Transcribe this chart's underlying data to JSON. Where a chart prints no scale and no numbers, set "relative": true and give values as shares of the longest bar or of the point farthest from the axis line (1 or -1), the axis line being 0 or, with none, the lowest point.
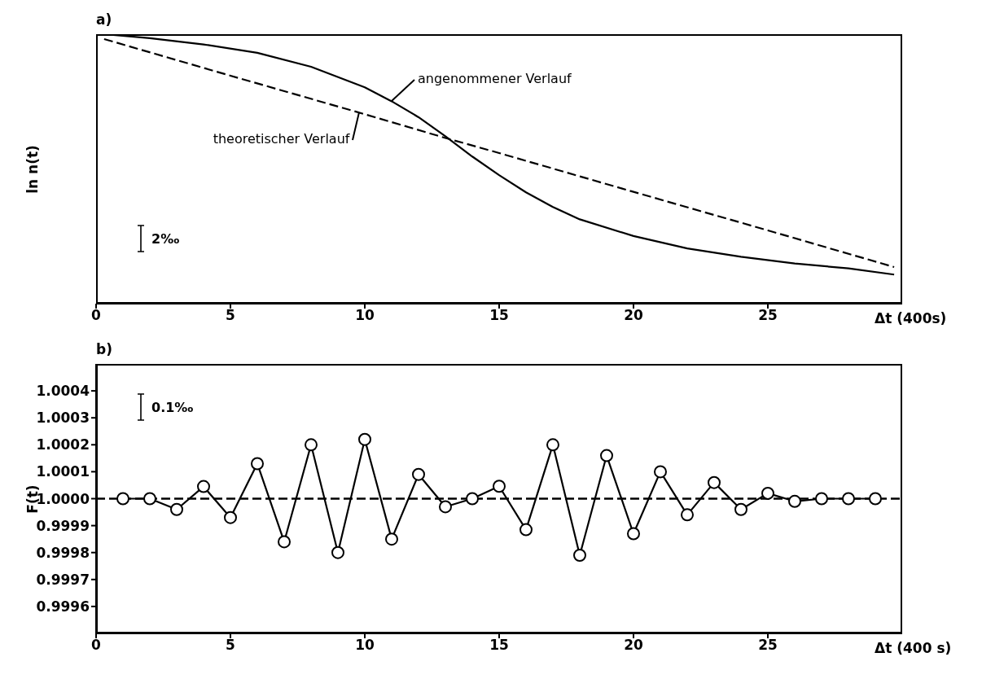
{
  "chart_data": [
    {
      "type": "line",
      "title": "a)",
      "xlabel": "Δt (400s)",
      "ylabel": "ln n(t)",
      "relative": true,
      "xlim": [
        0,
        30
      ],
      "xticks": [
        0,
        5,
        10,
        15,
        20,
        25
      ],
      "series": [
        {
          "color": "#000000",
          "line_style": "solid",
          "marker": "none",
          "x": [
            0.3,
            2,
            4,
            6,
            8,
            10,
            11,
            12,
            13,
            14,
            15,
            16,
            17,
            18,
            20,
            22,
            24,
            26,
            28,
            29.7
          ],
          "values": [
            1.0,
            0.985,
            0.962,
            0.931,
            0.879,
            0.803,
            0.751,
            0.692,
            0.621,
            0.546,
            0.477,
            0.413,
            0.359,
            0.313,
            0.251,
            0.205,
            0.174,
            0.149,
            0.131,
            0.108
          ]
        },
        {
          "color": "#000000",
          "line_style": "dashed",
          "marker": "none",
          "x": [
            0.3,
            5,
            10,
            13,
            15,
            20,
            25,
            29.7
          ],
          "values": [
            0.982,
            0.846,
            0.703,
            0.615,
            0.559,
            0.415,
            0.272,
            0.136
          ]
        }
      ],
      "annotations": [
        {
          "text": "angenommener Verlauf",
          "x": 11,
          "y": 0.751
        },
        {
          "text": "theoretischer Verlauf",
          "x": 9.8,
          "y": 0.709
        },
        "2‰"
      ]
    },
    {
      "type": "line",
      "title": "b)",
      "xlabel": "Δt (400 s)",
      "ylabel": "F(t)",
      "xlim": [
        0,
        30
      ],
      "xticks": [
        0,
        5,
        10,
        15,
        20,
        25
      ],
      "ylim": [
        0.9995,
        1.0005
      ],
      "yticks": [
        {
          "value": 0.9996,
          "label": "0.9996"
        },
        {
          "value": 0.9997,
          "label": "0.9997"
        },
        {
          "value": 0.9998,
          "label": "0.9998"
        },
        {
          "value": 0.9999,
          "label": "0.9999"
        },
        {
          "value": 1.0,
          "label": "1.0000"
        },
        {
          "value": 1.0001,
          "label": "1.0001"
        },
        {
          "value": 1.0002,
          "label": "1.0002"
        },
        {
          "value": 1.0003,
          "label": "1.0003"
        },
        {
          "value": 1.0004,
          "label": "1.0004"
        }
      ],
      "series": [
        {
          "color": "#000000",
          "line_style": "solid",
          "marker": "circle",
          "x": [
            1,
            2,
            3,
            4,
            5,
            6,
            7,
            8,
            9,
            10,
            11,
            12,
            13,
            14,
            15,
            16,
            17,
            18,
            19,
            20,
            21,
            22,
            23,
            24,
            25,
            26,
            27,
            28,
            29
          ],
          "values": [
            1.0,
            1.0,
            0.99996,
            1.000045,
            0.99993,
            1.00013,
            0.99984,
            1.0002,
            0.9998,
            1.00022,
            0.99985,
            1.00009,
            0.99997,
            1.0,
            1.000046,
            0.999885,
            1.0002,
            0.99979,
            1.00016,
            0.99987,
            1.0001,
            0.99994,
            1.00006,
            0.99996,
            1.00002,
            0.99999,
            1.0,
            1.0,
            1.0
          ]
        }
      ],
      "ref_lines": [
        {
          "axis": "y",
          "value": 1.0,
          "line_style": "dashed",
          "color": "#000000"
        }
      ],
      "annotations": [
        "0.1‰"
      ]
    }
  ]
}
